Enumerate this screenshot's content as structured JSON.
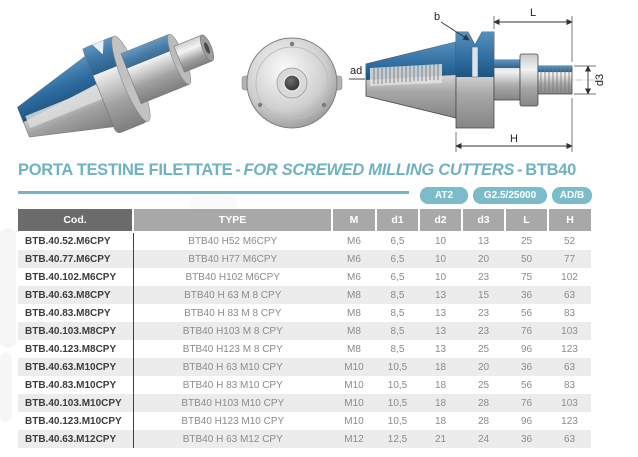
{
  "header": {
    "title_it": "PORTA TESTINE FILETTATE",
    "sep": "-",
    "title_en": "FOR SCREWED MILLING CUTTERS",
    "title_code": "BTB40"
  },
  "badges": [
    "AT2",
    "G2.5/25000",
    "AD/B"
  ],
  "diagram": {
    "labels": {
      "b": "b",
      "L": "L",
      "ad": "ad",
      "d3": "d3",
      "H": "H"
    }
  },
  "table": {
    "columns": [
      "Cod.",
      "TYPE",
      "M",
      "d1",
      "d2",
      "d3",
      "L",
      "H"
    ],
    "rows": [
      [
        "BTB.40.52.M6CPY",
        "BTB40 H52 M6CPY",
        "M6",
        "6,5",
        "10",
        "13",
        "25",
        "52"
      ],
      [
        "BTB.40.77.M6CPY",
        "BTB40 H77 M6CPY",
        "M6",
        "6,5",
        "10",
        "20",
        "50",
        "77"
      ],
      [
        "BTB.40.102.M6CPY",
        "BTB40 H102 M6CPY",
        "M6",
        "6,5",
        "10",
        "23",
        "75",
        "102"
      ],
      [
        "BTB.40.63.M8CPY",
        "BTB40 H 63 M 8 CPY",
        "M8",
        "8,5",
        "13",
        "15",
        "36",
        "63"
      ],
      [
        "BTB.40.83.M8CPY",
        "BTB40 H 83 M 8 CPY",
        "M8",
        "8,5",
        "13",
        "23",
        "56",
        "83"
      ],
      [
        "BTB.40.103.M8CPY",
        "BTB40 H103 M 8 CPY",
        "M8",
        "8,5",
        "13",
        "23",
        "76",
        "103"
      ],
      [
        "BTB.40.123.M8CPY",
        "BTB40 H123 M 8 CPY",
        "M8",
        "8,5",
        "13",
        "25",
        "96",
        "123"
      ],
      [
        "BTB.40.63.M10CPY",
        "BTB40 H 63 M10 CPY",
        "M10",
        "10,5",
        "18",
        "20",
        "36",
        "63"
      ],
      [
        "BTB.40.83.M10CPY",
        "BTB40 H 83 M10 CPY",
        "M10",
        "10,5",
        "18",
        "25",
        "56",
        "83"
      ],
      [
        "BTB.40.103.M10CPY",
        "BTB40 H103 M10 CPY",
        "M10",
        "10,5",
        "18",
        "28",
        "76",
        "103"
      ],
      [
        "BTB.40.123.M10CPY",
        "BTB40 H123 M10 CPY",
        "M10",
        "10,5",
        "18",
        "28",
        "96",
        "123"
      ],
      [
        "BTB.40.63.M12CPY",
        "BTB40 H 63 M12 CPY",
        "M12",
        "12,5",
        "21",
        "24",
        "36",
        "63"
      ]
    ]
  },
  "colors": {
    "accent_teal": "#74b5c4",
    "badge_teal": "#7cbcca",
    "header_dark_gray": "#6b6b6b",
    "header_gray": "#a8a8a8",
    "row_stripe": "#ececec",
    "steel_blue": "#2e6da0"
  }
}
